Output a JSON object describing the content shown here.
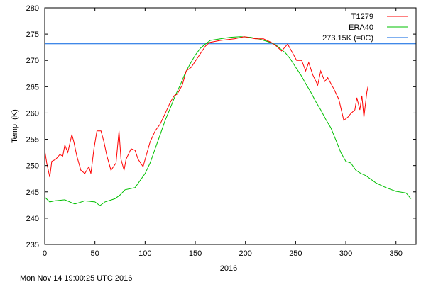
{
  "footer": {
    "timestamp": "Mon Nov 14 19:00:25 UTC 2016"
  },
  "chart_data": {
    "type": "line",
    "title": "",
    "xlabel": "2016",
    "ylabel": "Temp. (K)",
    "xlim": [
      0,
      370
    ],
    "ylim": [
      235,
      280
    ],
    "xticks": [
      0,
      50,
      100,
      150,
      200,
      250,
      300,
      350
    ],
    "yticks": [
      235,
      240,
      245,
      250,
      255,
      260,
      265,
      270,
      275,
      280
    ],
    "grid": false,
    "legend_position": "top-right",
    "series": [
      {
        "name": "T1279",
        "color": "#ff0000",
        "x": [
          0,
          2,
          5,
          7,
          11,
          15,
          18,
          20,
          23,
          27,
          29,
          32,
          36,
          40,
          44,
          46,
          49,
          52,
          56,
          59,
          62,
          66,
          71,
          74,
          76,
          79,
          81,
          86,
          90,
          93,
          98,
          100,
          105,
          110,
          115,
          120,
          125,
          129,
          132,
          137,
          141,
          146,
          153,
          160,
          164,
          175,
          189,
          199,
          210,
          218,
          226,
          231,
          236,
          242,
          247,
          251,
          256,
          260,
          263,
          267,
          272,
          275,
          279,
          282,
          288,
          293,
          298,
          302,
          305,
          309,
          311,
          314,
          316,
          318,
          321,
          322
        ],
        "y": [
          252.9,
          250.5,
          247.8,
          250.8,
          251.2,
          252.1,
          251.8,
          253.9,
          252.5,
          255.9,
          254.5,
          251.8,
          249.1,
          248.5,
          249.8,
          248.5,
          253.2,
          256.6,
          256.6,
          254.5,
          251.8,
          249.1,
          250.5,
          256.6,
          251.2,
          249.1,
          251.2,
          253.2,
          252.9,
          251.2,
          249.8,
          251.2,
          254.5,
          256.6,
          257.9,
          259.9,
          262.0,
          263.3,
          263.6,
          265.3,
          268.0,
          268.7,
          270.7,
          272.7,
          273.4,
          273.8,
          274.1,
          274.5,
          274.1,
          274.1,
          273.4,
          272.7,
          271.8,
          273.1,
          271.4,
          270.0,
          270.0,
          268.0,
          269.6,
          267.3,
          265.3,
          268.0,
          266.0,
          266.7,
          264.6,
          262.6,
          258.6,
          259.2,
          259.9,
          260.6,
          262.9,
          260.6,
          263.3,
          259.2,
          264.0,
          265.0
        ]
      },
      {
        "name": "ERA40",
        "color": "#00c000",
        "x": [
          0,
          5,
          10,
          20,
          25,
          30,
          40,
          50,
          55,
          60,
          70,
          75,
          80,
          90,
          100,
          105,
          110,
          115,
          120,
          125,
          130,
          135,
          140,
          145,
          150,
          155,
          160,
          165,
          175,
          185,
          195,
          205,
          215,
          225,
          230,
          240,
          245,
          250,
          255,
          260,
          265,
          270,
          275,
          280,
          285,
          290,
          295,
          300,
          305,
          310,
          315,
          320,
          330,
          340,
          350,
          360,
          365
        ],
        "y": [
          244.0,
          243.1,
          243.3,
          243.5,
          243.1,
          242.7,
          243.3,
          243.1,
          242.4,
          243.1,
          243.7,
          244.4,
          245.4,
          245.8,
          248.5,
          250.5,
          253.2,
          255.9,
          258.6,
          260.9,
          263.3,
          265.3,
          267.6,
          269.4,
          271.0,
          272.3,
          273.1,
          273.8,
          274.1,
          274.4,
          274.5,
          274.4,
          274.0,
          273.4,
          273.0,
          271.4,
          270.2,
          268.7,
          267.3,
          265.6,
          264.0,
          262.2,
          260.6,
          258.8,
          257.2,
          254.9,
          252.5,
          250.8,
          250.5,
          249.1,
          248.5,
          248.1,
          246.7,
          245.8,
          245.1,
          244.8,
          243.7
        ]
      },
      {
        "name": "273.15K (=0C)",
        "color": "#0060e0",
        "x": [
          0,
          370
        ],
        "y": [
          273.15,
          273.15
        ]
      }
    ]
  }
}
